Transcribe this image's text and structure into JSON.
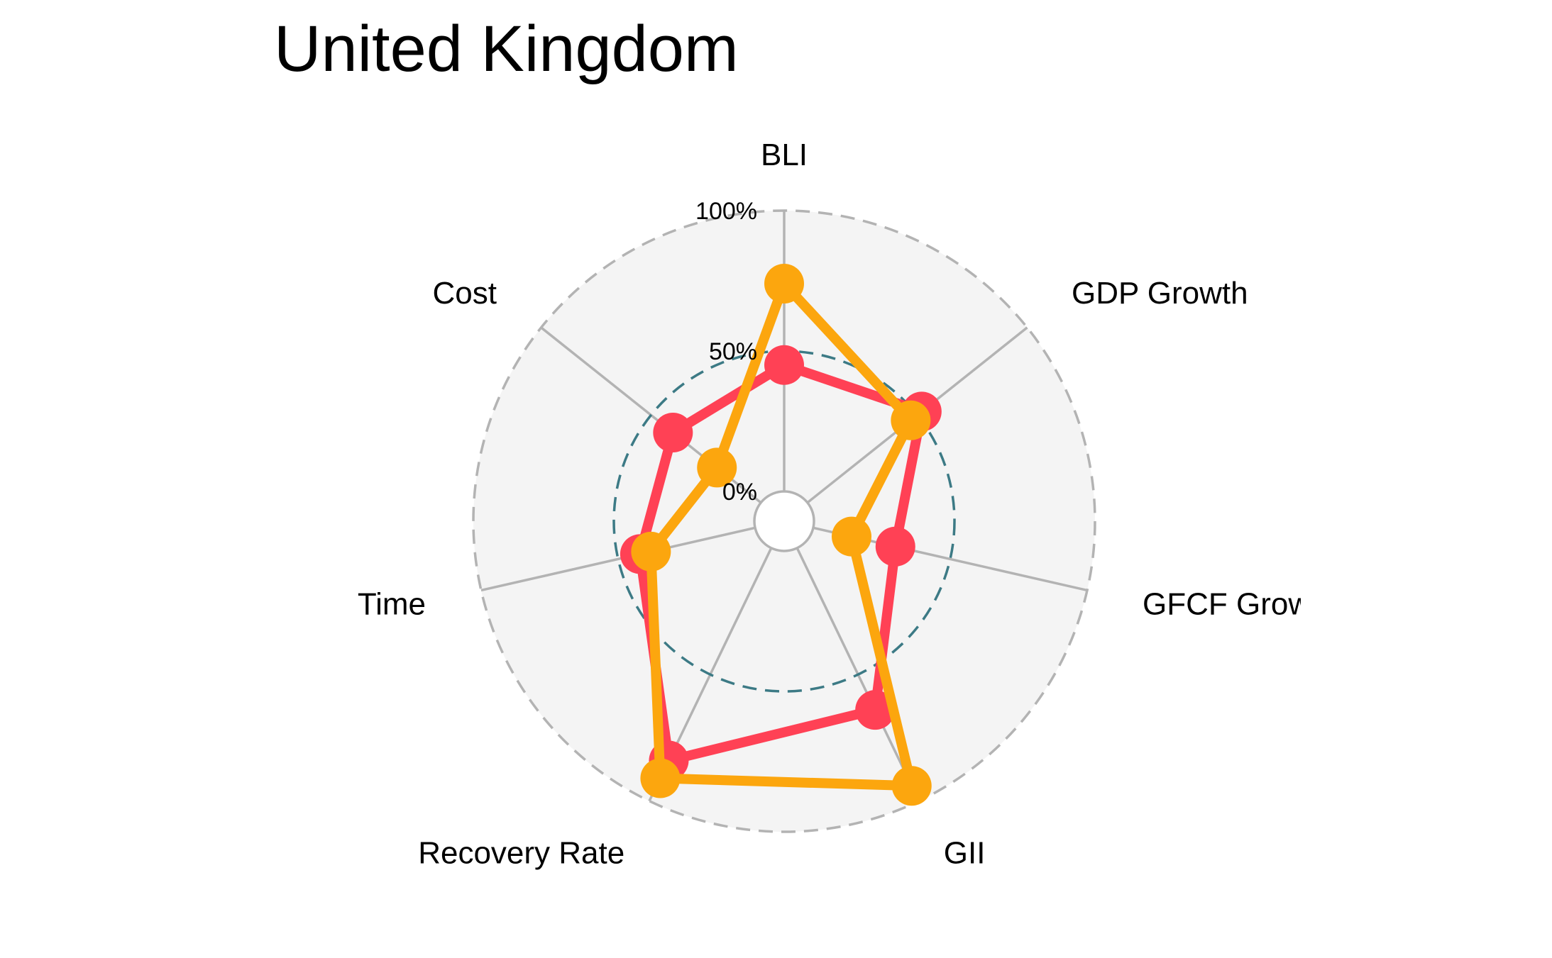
{
  "chart_data": {
    "type": "radar",
    "title": "United Kingdom",
    "axes": [
      "BLI",
      "GDP Growth",
      "GFCF Growth",
      "GII",
      "Recovery Rate",
      "Time",
      "Cost"
    ],
    "grid_labels": [
      "0%",
      "50%",
      "100%"
    ],
    "range": [
      0,
      100
    ],
    "series": [
      {
        "values": [
          45,
          52,
          30,
          64,
          84,
          42,
          40
        ],
        "color": "#ff4155"
      },
      {
        "values": [
          74,
          47,
          14,
          94,
          91,
          38,
          20
        ],
        "color": "#fca60e"
      }
    ],
    "colors": {
      "panel_fill": "#f4f4f4",
      "outer_ring": "#b3b3b3",
      "mid_ring": "#3c7a85",
      "spokes": "#b3b3b3"
    }
  }
}
